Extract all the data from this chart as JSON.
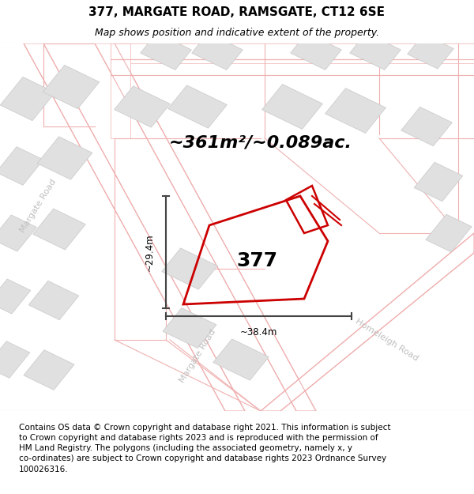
{
  "title_line1": "377, MARGATE ROAD, RAMSGATE, CT12 6SE",
  "title_line2": "Map shows position and indicative extent of the property.",
  "area_text": "~361m²/~0.089ac.",
  "label_377": "377",
  "dim_width": "~38.4m",
  "dim_height": "~29.4m",
  "footer_text": "Contains OS data © Crown copyright and database right 2021. This information is subject\nto Crown copyright and database rights 2023 and is reproduced with the permission of\nHM Land Registry. The polygons (including the associated geometry, namely x, y\nco-ordinates) are subject to Crown copyright and database rights 2023 Ordnance Survey\n100026316.",
  "map_bg": "#ffffff",
  "building_fill": "#e0e0e0",
  "building_edge": "#c8c8c8",
  "road_line_color": "#f0b0b0",
  "plot_color": "#cc0000",
  "dim_line_color": "#444444",
  "road_label_color": "#c0c0c0",
  "title_fontsize": 11,
  "subtitle_fontsize": 9,
  "area_fontsize": 16,
  "label_fontsize": 18,
  "footer_fontsize": 7.5,
  "road_label_fontsize": 8
}
